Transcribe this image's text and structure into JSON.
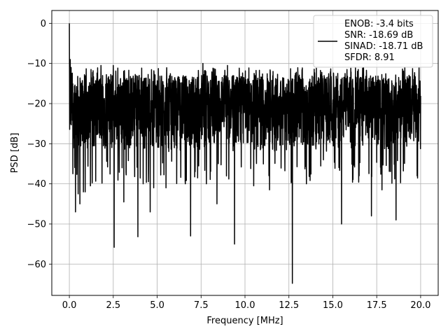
{
  "chart_data": {
    "type": "line",
    "title": "",
    "xlabel": "Frequency [MHz]",
    "ylabel": "PSD [dB]",
    "xlim": [
      -1.0,
      21.0
    ],
    "ylim": [
      -67.8,
      3.2
    ],
    "xticks": [
      0.0,
      2.5,
      5.0,
      7.5,
      10.0,
      12.5,
      15.0,
      17.5,
      20.0
    ],
    "xtick_labels": [
      "0.0",
      "2.5",
      "5.0",
      "7.5",
      "10.0",
      "12.5",
      "15.0",
      "17.5",
      "20.0"
    ],
    "yticks": [
      0,
      -10,
      -20,
      -30,
      -40,
      -50,
      -60
    ],
    "ytick_labels": [
      "0",
      "−10",
      "−20",
      "−30",
      "−40",
      "−50",
      "−60"
    ],
    "grid": true,
    "legend_position": "top-right",
    "legend_lines": [
      "ENOB: -3.4 bits",
      "SNR: -18.69 dB",
      "SINAD: -18.71 dB",
      "SFDR: 8.91"
    ],
    "series": [
      {
        "color": "#000000",
        "noise_floor_db": -22,
        "noise_range_db": [
          -32,
          -13
        ],
        "peaks": [
          [
            0.0,
            0.0
          ],
          [
            0.05,
            -9.0
          ],
          [
            0.1,
            -11.0
          ],
          [
            1.8,
            -10.5
          ],
          [
            2.5,
            -10.5
          ],
          [
            7.6,
            -10.0
          ],
          [
            9.0,
            -10.5
          ]
        ],
        "dips": [
          [
            0.2,
            -37.5
          ],
          [
            0.35,
            -47.0
          ],
          [
            0.5,
            -42.5
          ],
          [
            0.6,
            -45.0
          ],
          [
            0.8,
            -42.0
          ],
          [
            0.9,
            -42.0
          ],
          [
            1.2,
            -40.5
          ],
          [
            2.55,
            -55.8
          ],
          [
            3.0,
            -36.0
          ],
          [
            3.1,
            -44.5
          ],
          [
            3.9,
            -53.2
          ],
          [
            4.2,
            -40.0
          ],
          [
            4.6,
            -47.0
          ],
          [
            4.8,
            -41.0
          ],
          [
            5.5,
            -41.0
          ],
          [
            6.6,
            -40.0
          ],
          [
            6.9,
            -53.0
          ],
          [
            7.8,
            -40.0
          ],
          [
            8.4,
            -45.0
          ],
          [
            9.4,
            -55.0
          ],
          [
            10.5,
            -40.5
          ],
          [
            11.4,
            -41.5
          ],
          [
            12.7,
            -64.8
          ],
          [
            13.5,
            -40.0
          ],
          [
            15.5,
            -50.0
          ],
          [
            16.5,
            -38.0
          ],
          [
            17.2,
            -48.0
          ],
          [
            17.8,
            -41.5
          ],
          [
            18.6,
            -49.0
          ],
          [
            19.8,
            -38.0
          ]
        ],
        "x_range": [
          0.0,
          20.0
        ]
      }
    ]
  }
}
